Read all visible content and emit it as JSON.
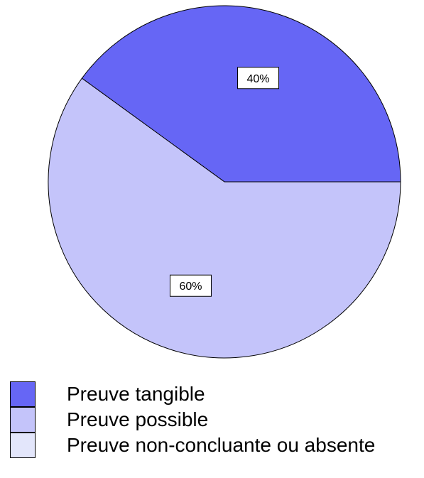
{
  "chart_data": {
    "type": "pie",
    "categories": [
      "Preuve tangible",
      "Preuve possible",
      "Preuve non-concluante ou absente"
    ],
    "values": [
      40,
      60,
      0
    ],
    "data_labels": [
      "40%",
      "60%",
      ""
    ],
    "colors": [
      "#6666f5",
      "#c4c4fa",
      "#e3e6fb"
    ],
    "legend": "bottom-left"
  }
}
